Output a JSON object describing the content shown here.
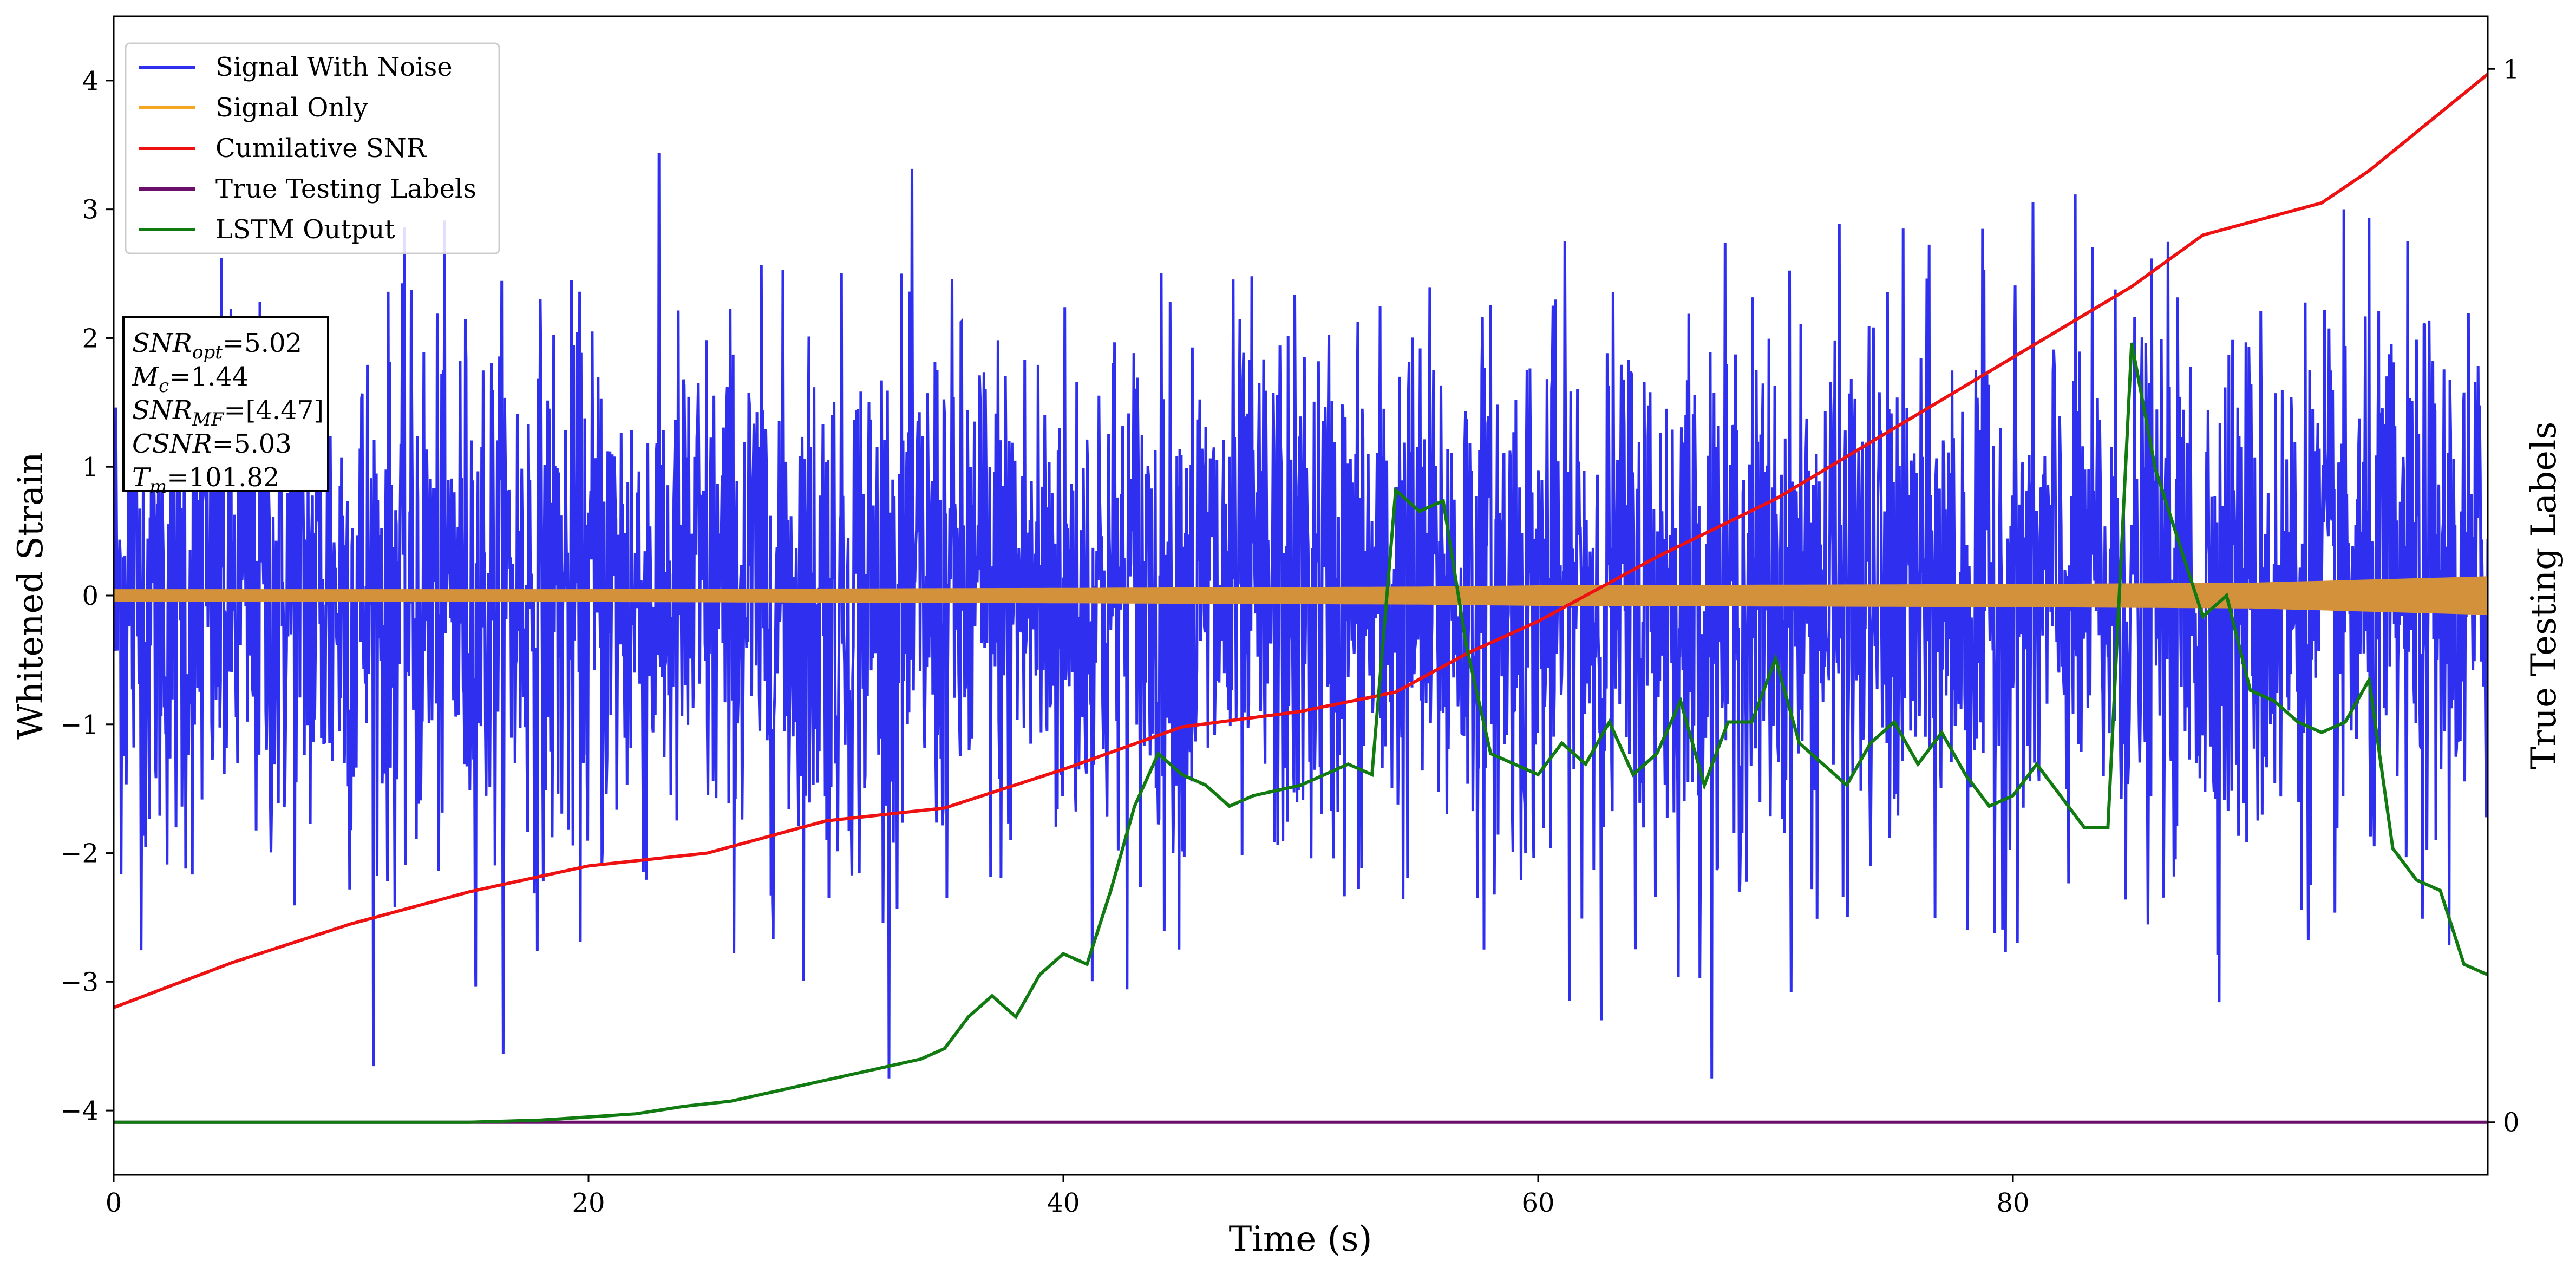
{
  "chart_data": {
    "type": "line",
    "title": "",
    "xlabel": "Time (s)",
    "ylabel": "Whitened Strain",
    "y2label": "True Testing Labels",
    "xlim": [
      0,
      100
    ],
    "ylim": [
      -4.5,
      4.5
    ],
    "y2lim": [
      -0.05,
      1.05
    ],
    "xticks": [
      0,
      20,
      40,
      60,
      80
    ],
    "yticks": [
      -4,
      -3,
      -2,
      -1,
      0,
      1,
      2,
      3,
      4
    ],
    "y2ticks": [
      0,
      1
    ],
    "grid": false,
    "legend_position": "top-left",
    "colors": {
      "signal_with_noise": "#2f2ff0",
      "signal_only": "#f5a623",
      "signal_only_band": "#d4913c",
      "cumulative_snr": "#ee1111",
      "true_labels": "#6b0f6b",
      "lstm_output": "#117a11"
    },
    "series": [
      {
        "name": "Signal With Noise",
        "kind": "noise",
        "axis": "left",
        "amplitude_note": "random noise ~ N(0,1), peaks to ~4.1 and -3.7"
      },
      {
        "name": "Signal Only",
        "kind": "band",
        "axis": "left",
        "x": [
          0,
          20,
          40,
          55,
          60,
          80,
          90,
          100
        ],
        "half_width": [
          0.05,
          0.05,
          0.06,
          0.07,
          0.08,
          0.09,
          0.1,
          0.15
        ]
      },
      {
        "name": "Cumilative SNR",
        "axis": "left",
        "x": [
          0,
          5,
          10,
          15,
          20,
          25,
          30,
          35,
          40,
          45,
          50,
          54,
          57,
          60,
          65,
          70,
          75,
          80,
          85,
          88,
          90,
          93,
          95,
          100
        ],
        "y": [
          -3.2,
          -2.85,
          -2.55,
          -2.3,
          -2.1,
          -2.0,
          -1.75,
          -1.65,
          -1.35,
          -1.02,
          -0.9,
          -0.75,
          -0.45,
          -0.2,
          0.3,
          0.75,
          1.3,
          1.85,
          2.4,
          2.8,
          2.9,
          3.05,
          3.3,
          4.05
        ]
      },
      {
        "name": "True Testing Labels",
        "axis": "right",
        "x": [
          0,
          100
        ],
        "y": [
          0,
          0
        ]
      },
      {
        "name": "LSTM Output",
        "axis": "right",
        "x": [
          0,
          15,
          18,
          20,
          22,
          24,
          26,
          28,
          30,
          32,
          34,
          35,
          36,
          37,
          38,
          39,
          40,
          41,
          42,
          43,
          44,
          45,
          46,
          47,
          48,
          50,
          52,
          53,
          54,
          55,
          56,
          57,
          58,
          59,
          60,
          61,
          62,
          63,
          64,
          65,
          66,
          67,
          68,
          69,
          70,
          71,
          72,
          73,
          74,
          75,
          76,
          77,
          78,
          79,
          80,
          81,
          82,
          83,
          84,
          85,
          86,
          87,
          88,
          89,
          90,
          91,
          92,
          93,
          94,
          95,
          96,
          97,
          98,
          99,
          100
        ],
        "y": [
          0,
          0,
          0.002,
          0.005,
          0.008,
          0.015,
          0.02,
          0.03,
          0.04,
          0.05,
          0.06,
          0.07,
          0.1,
          0.12,
          0.1,
          0.14,
          0.16,
          0.15,
          0.22,
          0.3,
          0.35,
          0.33,
          0.32,
          0.3,
          0.31,
          0.32,
          0.34,
          0.33,
          0.6,
          0.58,
          0.59,
          0.45,
          0.35,
          0.34,
          0.33,
          0.36,
          0.34,
          0.38,
          0.33,
          0.35,
          0.4,
          0.32,
          0.38,
          0.38,
          0.44,
          0.36,
          0.34,
          0.32,
          0.36,
          0.38,
          0.34,
          0.37,
          0.33,
          0.3,
          0.31,
          0.34,
          0.31,
          0.28,
          0.28,
          0.74,
          0.62,
          0.55,
          0.48,
          0.5,
          0.41,
          0.4,
          0.38,
          0.37,
          0.38,
          0.42,
          0.26,
          0.23,
          0.22,
          0.15,
          0.14
        ]
      }
    ],
    "annotation": {
      "lines": [
        {
          "base": "SNR",
          "sub": "opt",
          "value": "=5.02"
        },
        {
          "base": "M",
          "sub": "c",
          "value": "=1.44"
        },
        {
          "base": "SNR",
          "sub": "MF",
          "value": "=[4.47]"
        },
        {
          "base": "CSNR",
          "sub": "",
          "value": "=5.03"
        },
        {
          "base": "T",
          "sub": "m",
          "value": "=101.82"
        }
      ]
    }
  }
}
